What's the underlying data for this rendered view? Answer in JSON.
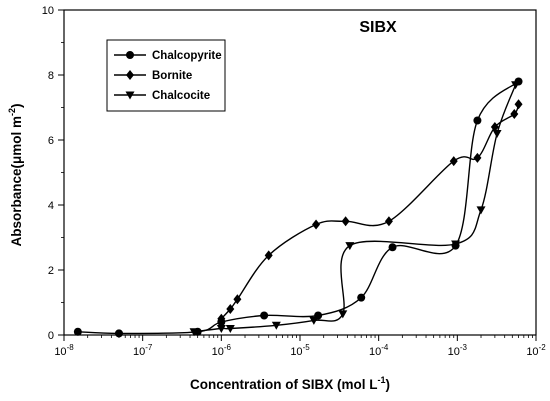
{
  "chart_data": {
    "type": "line",
    "title": "SIBX",
    "xlabel": "Concentration of SIBX (mol L",
    "xlabel_sup": "-1",
    "xlabel_tail": ")",
    "ylabel": "Absorbance(μmol m",
    "ylabel_sup": "-2",
    "ylabel_tail": ")",
    "x_scale": "log",
    "xlim": [
      1e-08,
      0.01
    ],
    "ylim": [
      0,
      10
    ],
    "x_ticks": [
      {
        "value": 1e-08,
        "base": "10",
        "exp": "-8"
      },
      {
        "value": 1e-07,
        "base": "10",
        "exp": "-7"
      },
      {
        "value": 1e-06,
        "base": "10",
        "exp": "-6"
      },
      {
        "value": 1e-05,
        "base": "10",
        "exp": "-5"
      },
      {
        "value": 0.0001,
        "base": "10",
        "exp": "-4"
      },
      {
        "value": 0.001,
        "base": "10",
        "exp": "-3"
      },
      {
        "value": 0.01,
        "base": "10",
        "exp": "-2"
      }
    ],
    "y_ticks": [
      {
        "value": 0,
        "label": "0"
      },
      {
        "value": 2,
        "label": "2"
      },
      {
        "value": 4,
        "label": "4"
      },
      {
        "value": 6,
        "label": "6"
      },
      {
        "value": 8,
        "label": "8"
      },
      {
        "value": 10,
        "label": "10"
      }
    ],
    "grid": false,
    "legend_position": "top-left",
    "series": [
      {
        "name": "Chalcopyrite",
        "marker": "circle",
        "x": [
          1.5e-08,
          5e-08,
          5e-07,
          1e-06,
          3.5e-06,
          1.7e-05,
          6e-05,
          0.00015,
          0.00095,
          0.0018,
          0.006
        ],
        "y": [
          0.1,
          0.05,
          0.1,
          0.4,
          0.6,
          0.6,
          1.15,
          2.7,
          2.75,
          6.6,
          7.8
        ]
      },
      {
        "name": "Bornite",
        "marker": "diamond",
        "x": [
          1e-06,
          1.3e-06,
          1.6e-06,
          4e-06,
          1.6e-05,
          3.8e-05,
          0.000135,
          0.0009,
          0.0018,
          0.003,
          0.0053,
          0.006
        ],
        "y": [
          0.5,
          0.8,
          1.1,
          2.45,
          3.4,
          3.5,
          3.5,
          5.35,
          5.45,
          6.4,
          6.8,
          7.1
        ]
      },
      {
        "name": "Chalcocite",
        "marker": "triangle-down",
        "x": [
          4.5e-07,
          1e-06,
          1.3e-06,
          5e-06,
          1.5e-05,
          3.5e-05,
          4.3e-05,
          0.00095,
          0.002,
          0.0032,
          0.0055
        ],
        "y": [
          0.1,
          0.2,
          0.2,
          0.3,
          0.45,
          0.65,
          2.75,
          2.8,
          3.85,
          6.2,
          7.7
        ]
      }
    ]
  }
}
